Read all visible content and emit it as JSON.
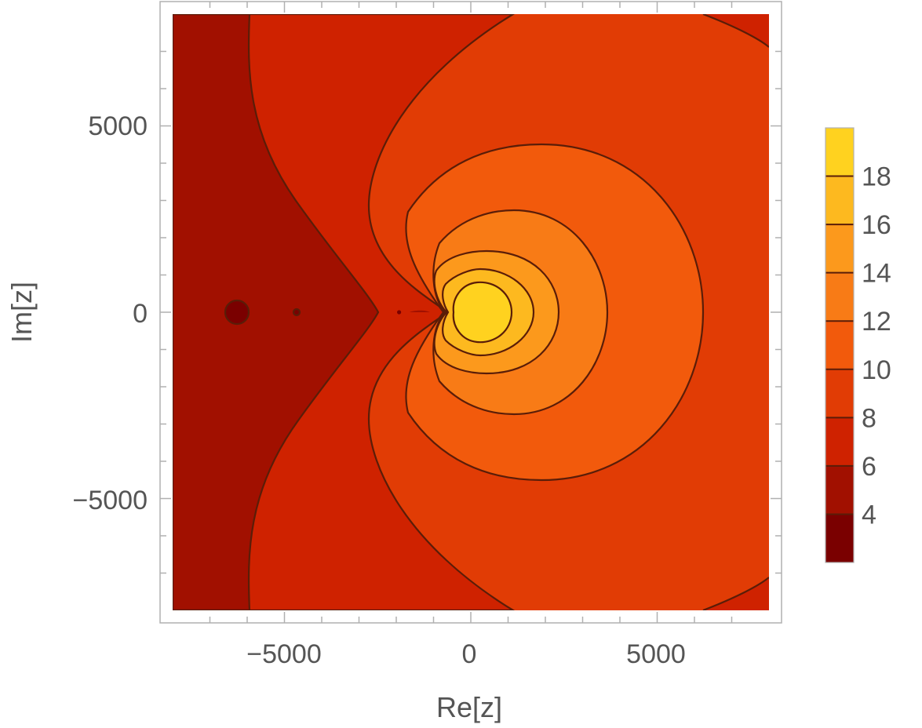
{
  "chart_data": {
    "type": "contour",
    "title": "",
    "xlabel": "Re[z]",
    "ylabel": "Im[z]",
    "xlim": [
      -8000,
      8000
    ],
    "ylim": [
      -8000,
      8000
    ],
    "x_ticks": [
      -5000,
      0,
      5000
    ],
    "x_tick_labels": [
      "−5000",
      "0",
      "5000"
    ],
    "y_ticks": [
      5000,
      0,
      -5000
    ],
    "y_tick_labels": [
      "5000",
      "0",
      "−5000"
    ],
    "legend": {
      "type": "colorbar",
      "placement": "right",
      "range": [
        2,
        20
      ],
      "ticks": [
        18,
        16,
        14,
        12,
        10,
        8,
        6,
        4
      ],
      "tick_labels": [
        "18",
        "16",
        "14",
        "12",
        "10",
        "8",
        "6",
        "4"
      ]
    },
    "levels": [
      {
        "min": 2,
        "max": 4,
        "color": "#7a0000"
      },
      {
        "min": 4,
        "max": 6,
        "color": "#a11000"
      },
      {
        "min": 6,
        "max": 8,
        "color": "#cf2200"
      },
      {
        "min": 8,
        "max": 10,
        "color": "#e13c05"
      },
      {
        "min": 10,
        "max": 12,
        "color": "#f25a0c"
      },
      {
        "min": 12,
        "max": 14,
        "color": "#f87b16"
      },
      {
        "min": 14,
        "max": 16,
        "color": "#fc991c"
      },
      {
        "min": 16,
        "max": 18,
        "color": "#fdb91f"
      },
      {
        "min": 18,
        "max": 20,
        "color": "#ffd21f"
      }
    ],
    "line_color": "#5a1d08",
    "frame_color": "#b0b0b0",
    "text_color": "#555555"
  }
}
